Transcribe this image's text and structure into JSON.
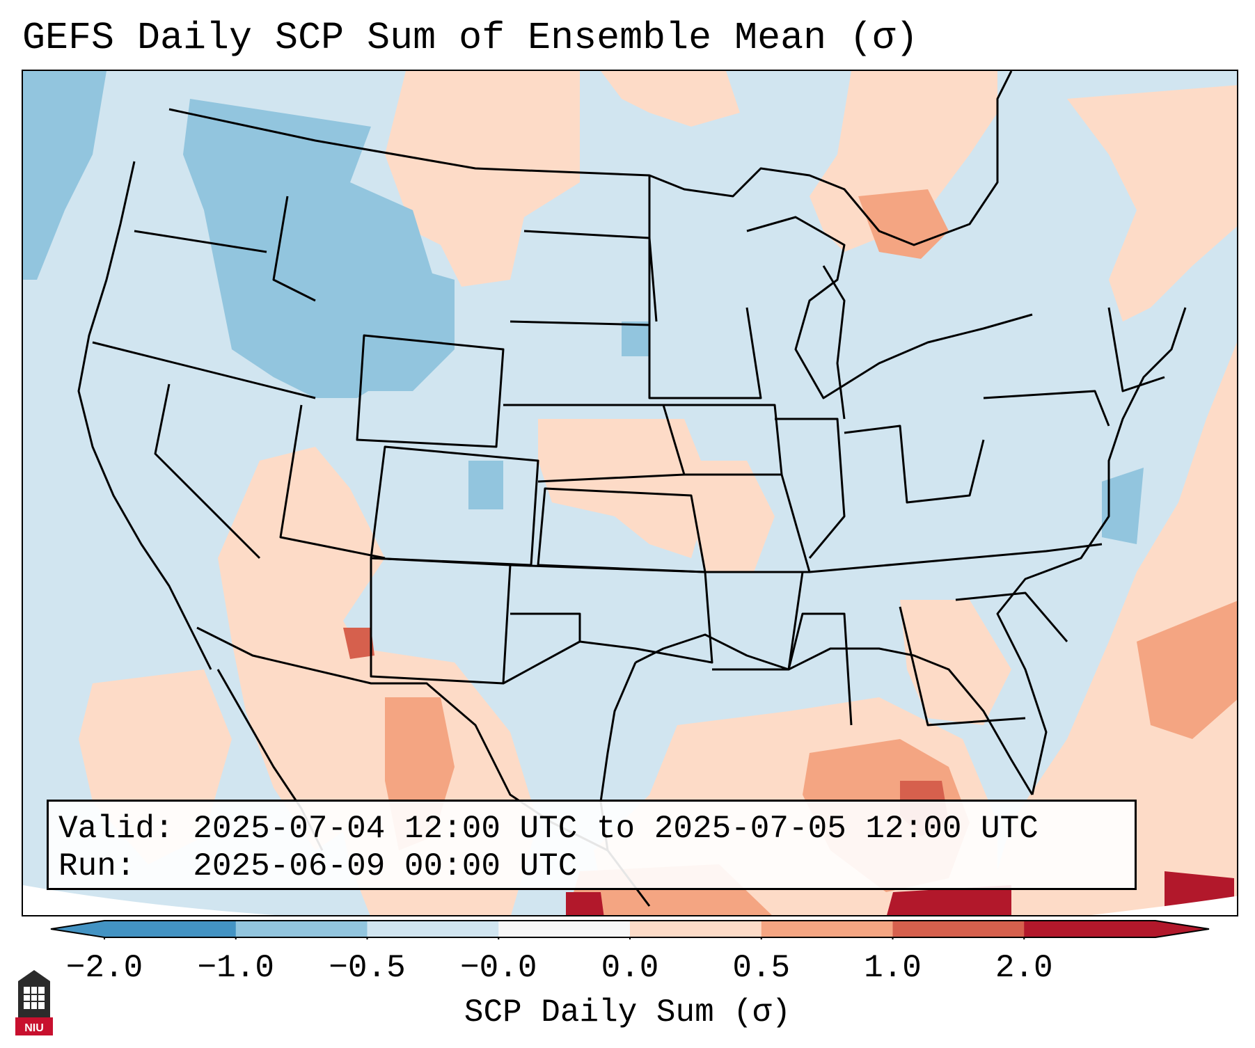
{
  "title": "GEFS Daily SCP Sum of Ensemble Mean (σ)",
  "info": {
    "valid_label": "Valid:",
    "valid_value": "2025-07-04 12:00 UTC to 2025-07-05 12:00 UTC",
    "run_label": "Run:",
    "run_value": "2025-06-09 00:00 UTC"
  },
  "colorbar": {
    "label": "SCP Daily Sum (σ)",
    "ticks": [
      "−2.0",
      "−1.0",
      "−0.5",
      "−0.0",
      "0.0",
      "0.5",
      "1.0",
      "2.0"
    ],
    "colors": [
      "#4393c3",
      "#92c5de",
      "#d1e5f0",
      "#f7f7f7",
      "#fddbc7",
      "#f4a582",
      "#d6604d",
      "#b2182b"
    ]
  },
  "logo": {
    "text": "NIU"
  },
  "legend_colors": {
    "neutral_blue": "#d1e5f0",
    "blue_mid": "#92c5de",
    "orange_light": "#fddbc7",
    "orange_mid": "#f4a582",
    "red_mid": "#d6604d",
    "red_dark": "#b2182b"
  }
}
